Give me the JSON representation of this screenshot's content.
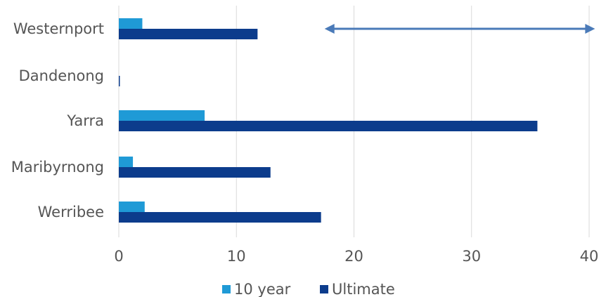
{
  "chart_data": {
    "type": "bar",
    "orientation": "horizontal",
    "categories": [
      "Westernport",
      "Dandenong",
      "Yarra",
      "Maribyrnong",
      "Werribee"
    ],
    "series": [
      {
        "name": "10 year",
        "values": [
          2.0,
          0.0,
          7.3,
          1.2,
          2.2
        ]
      },
      {
        "name": "Ultimate",
        "values": [
          11.8,
          0.05,
          35.6,
          12.9,
          17.2
        ]
      }
    ],
    "xlim": [
      0,
      40
    ],
    "x_ticks": [
      0,
      10,
      20,
      30,
      40
    ],
    "x_tick_labels": [
      "0",
      "10",
      "20",
      "30",
      "40"
    ],
    "grid": "vertical",
    "legend_position": "bottom",
    "annotation": {
      "type": "double-headed-arrow",
      "x_from": 17.5,
      "x_to": 40.5,
      "category": "Westernport"
    },
    "colors": {
      "10 year": "#1f9ad6",
      "Ultimate": "#0c3c8c",
      "grid": "#d9d9d9",
      "arrow": "#4a7ab8",
      "text": "#555555"
    }
  }
}
